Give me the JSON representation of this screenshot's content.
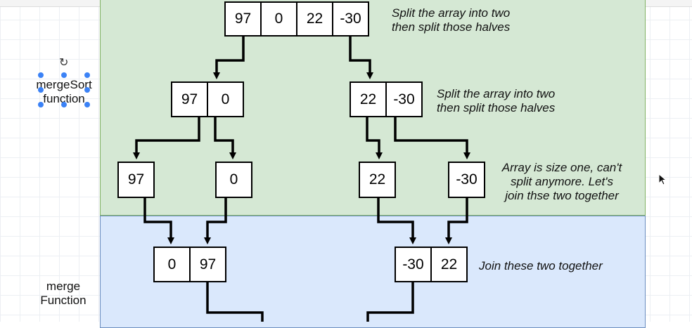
{
  "sections": {
    "merge_sort_label": [
      "mergeSort",
      "function"
    ],
    "merge_label": [
      "merge",
      "Function"
    ]
  },
  "diagram": {
    "level0": [
      "97",
      "0",
      "22",
      "-30"
    ],
    "level1_left": [
      "97",
      "0"
    ],
    "level1_right": [
      "22",
      "-30"
    ],
    "level2": [
      "97",
      "0",
      "22",
      "-30"
    ],
    "merged_left": [
      "0",
      "97"
    ],
    "merged_right": [
      "-30",
      "22"
    ]
  },
  "notes": {
    "split_top": [
      "Split the array into two",
      "then split those halves"
    ],
    "split_mid": [
      "Split the array into two",
      "then split those halves"
    ],
    "size_one": [
      "Array is size one, can't",
      "split anymore.  Let's",
      "join thse two together"
    ],
    "join": "Join these two together"
  },
  "colors": {
    "split_panel": "#d5e8d4",
    "split_border": "#82b366",
    "merge_panel": "#dae8fc",
    "merge_border": "#6c8ebf",
    "selection": "#3b82f6"
  },
  "icons": {
    "rotate": "rotate-handle-icon",
    "pointer": "mouse-pointer-icon"
  }
}
